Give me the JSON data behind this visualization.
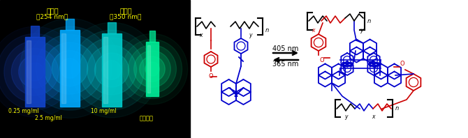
{
  "fig_width": 6.7,
  "fig_height": 1.98,
  "dpi": 100,
  "bg_color": "#ffffff",
  "photo_bg": "#000000",
  "yellow_text_color": "#ffff00",
  "blue_color": "#0000cc",
  "red_color": "#cc0000",
  "black_color": "#000000",
  "arrow_text_top": "405 nm",
  "arrow_text_bot": "365 nm",
  "label_uv1": "紫外線",
  "label_uv1b": "（254 nm）",
  "label_uv2": "紫外線",
  "label_uv2b": "（350 nm）",
  "label_conc1": "0.25 mg/ml",
  "label_conc2": "2.5 mg/ml",
  "label_conc3": "10 mg/ml",
  "label_film": "フィルム"
}
